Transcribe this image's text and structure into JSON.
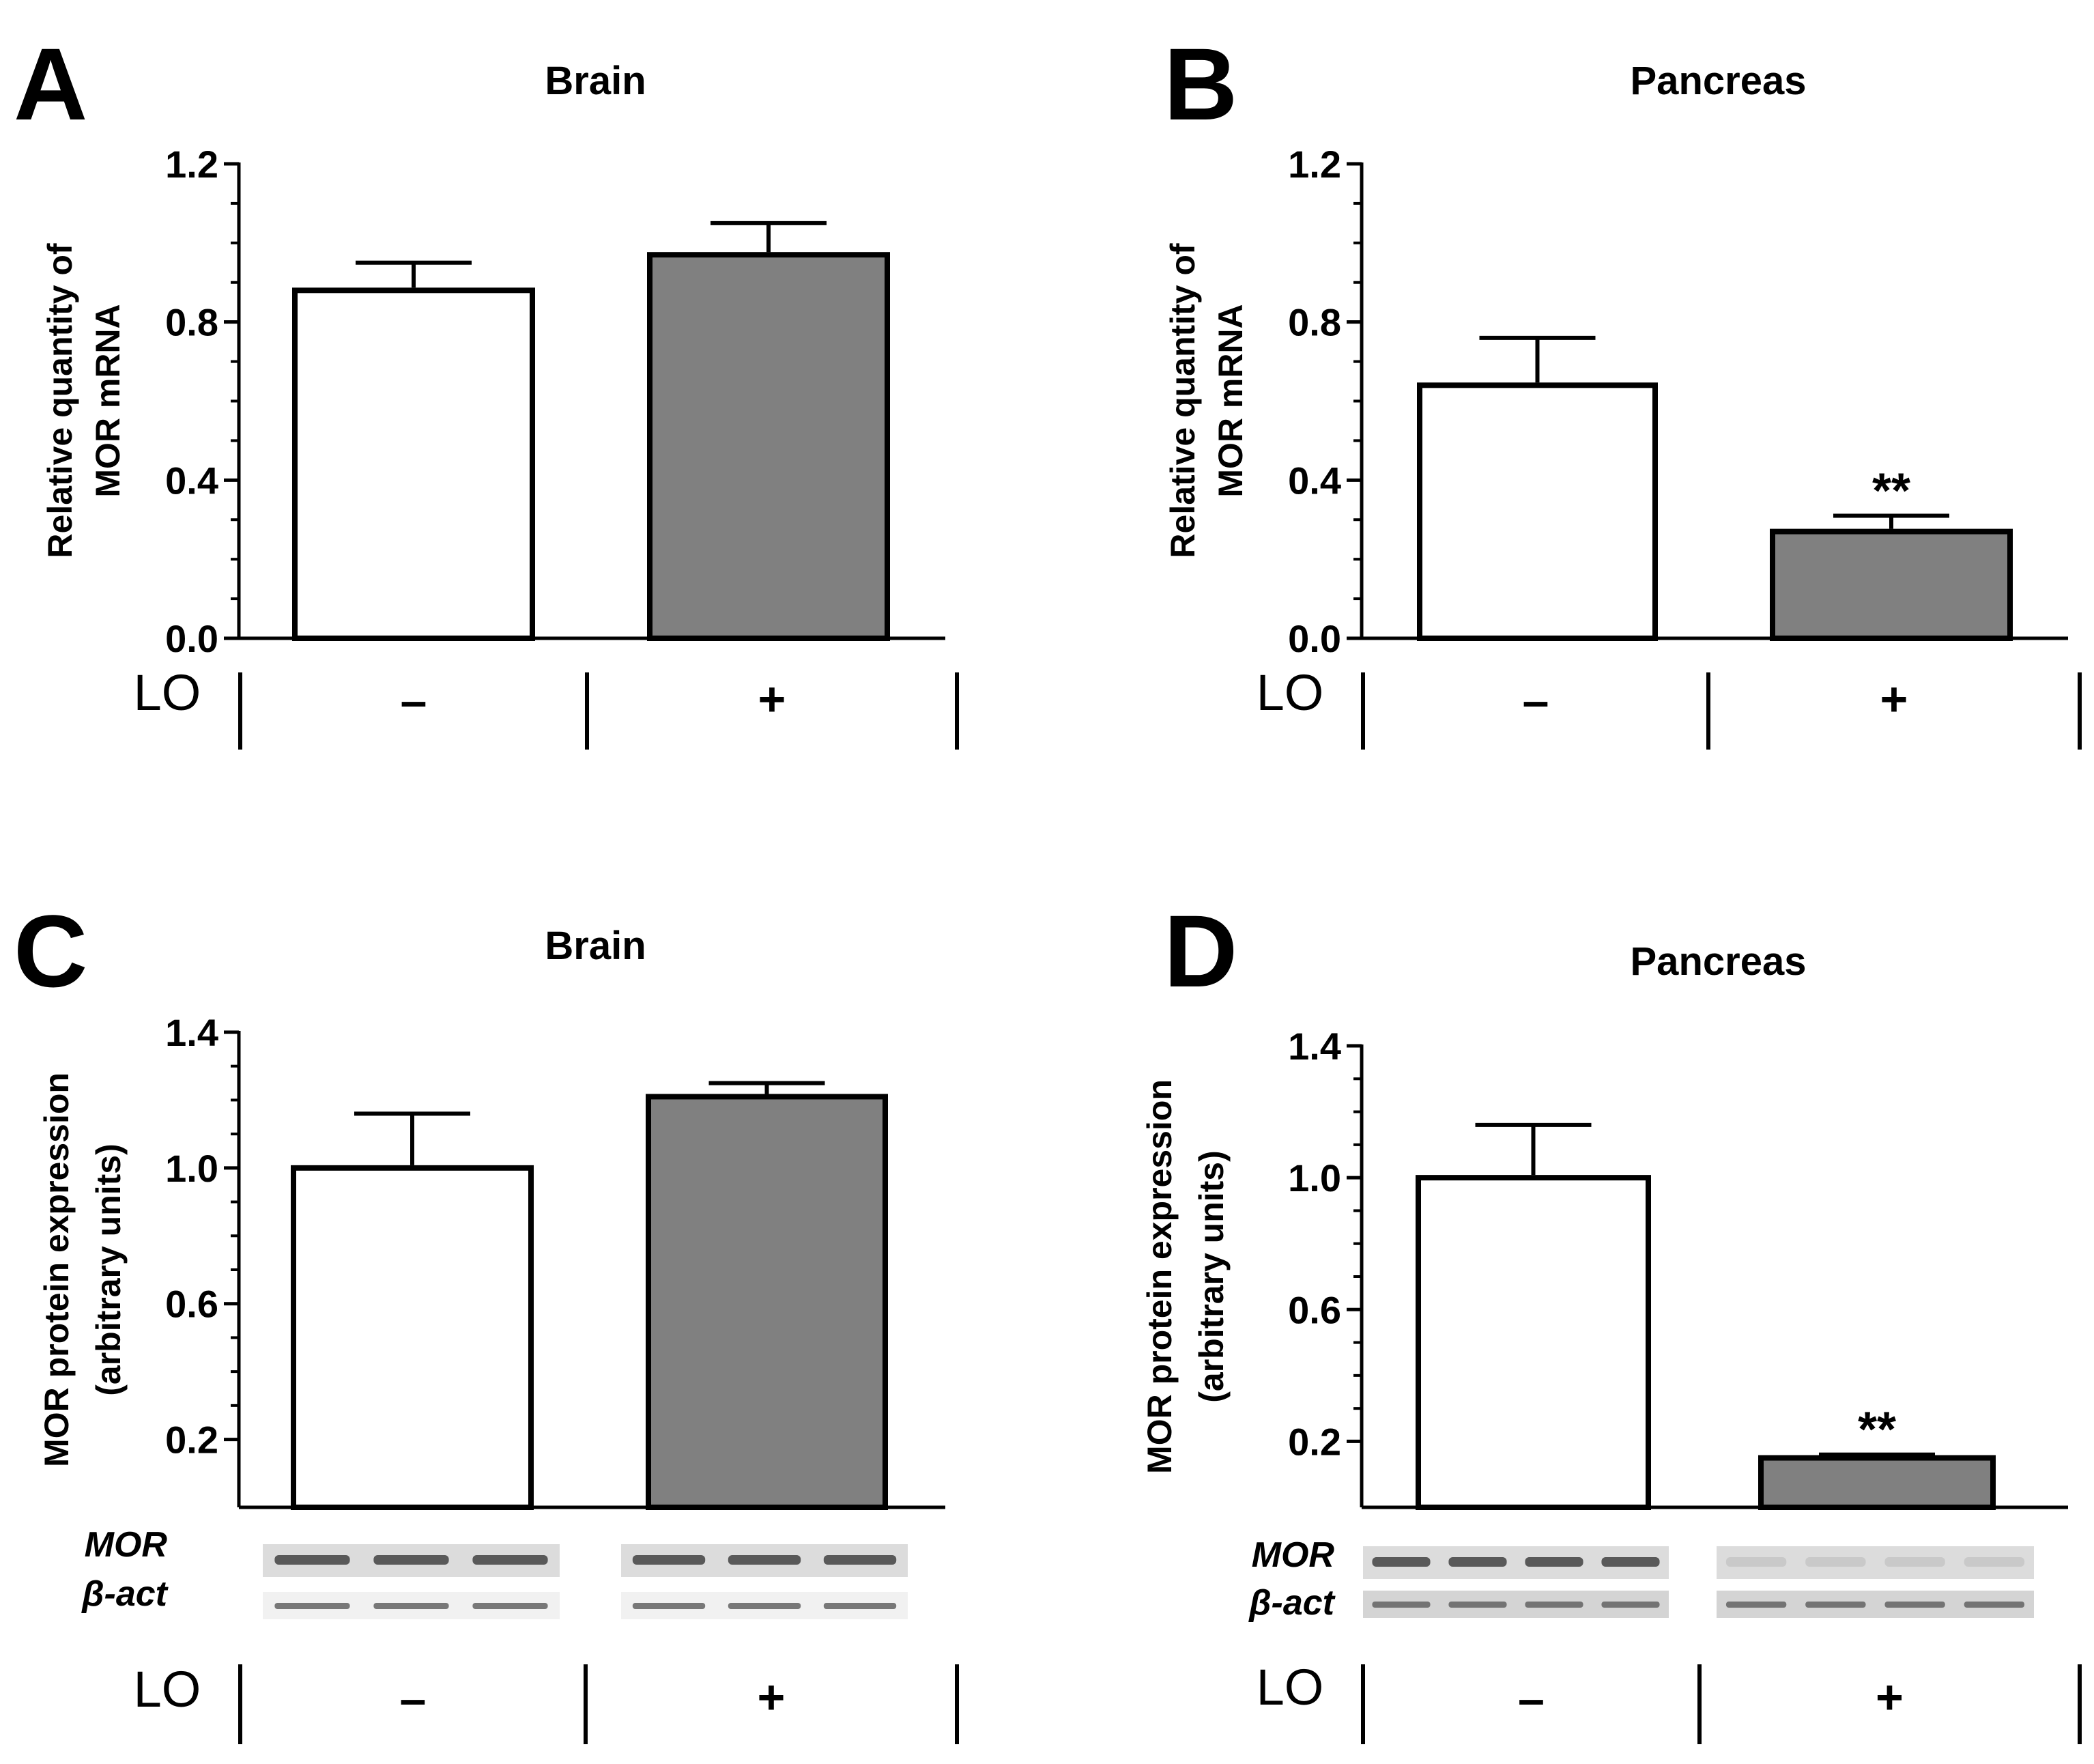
{
  "colors": {
    "control": "#ffffff",
    "treated": "#808080",
    "stroke": "#000000"
  },
  "chart_data": [
    {
      "panel": "A",
      "type": "bar",
      "title": "Brain",
      "ylabel_lines": [
        "Relative quantity of",
        "MOR mRNA"
      ],
      "ylim": [
        0,
        1.2
      ],
      "yticks": [
        0.0,
        0.4,
        0.8,
        1.2
      ],
      "ytick_labels": [
        "0.0",
        "0.4",
        "0.8",
        "1.2"
      ],
      "categories": [
        "–",
        "+"
      ],
      "group_label": "LO",
      "values": [
        0.88,
        0.97
      ],
      "errors": [
        0.07,
        0.08
      ],
      "annotations": [
        "",
        ""
      ]
    },
    {
      "panel": "B",
      "type": "bar",
      "title": "Pancreas",
      "ylabel_lines": [
        "Relative quantity of",
        "MOR mRNA"
      ],
      "ylim": [
        0,
        1.2
      ],
      "yticks": [
        0.0,
        0.4,
        0.8,
        1.2
      ],
      "ytick_labels": [
        "0.0",
        "0.4",
        "0.8",
        "1.2"
      ],
      "categories": [
        "–",
        "+"
      ],
      "group_label": "LO",
      "values": [
        0.64,
        0.27
      ],
      "errors": [
        0.12,
        0.04
      ],
      "annotations": [
        "",
        "**"
      ]
    },
    {
      "panel": "C",
      "type": "bar",
      "title": "Brain",
      "ylabel_lines": [
        "MOR protein expression",
        "(arbitrary units)"
      ],
      "ylim": [
        0,
        1.4
      ],
      "yticks": [
        0.2,
        0.6,
        1.0,
        1.4
      ],
      "ytick_labels": [
        "0.2",
        "0.6",
        "1.0",
        "1.4"
      ],
      "categories": [
        "–",
        "+"
      ],
      "group_label": "LO",
      "values": [
        1.0,
        1.21
      ],
      "errors": [
        0.16,
        0.04
      ],
      "annotations": [
        "",
        ""
      ],
      "blot_labels": [
        "MOR",
        "β-act"
      ]
    },
    {
      "panel": "D",
      "type": "bar",
      "title": "Pancreas",
      "ylabel_lines": [
        "MOR protein expression",
        "(arbitrary units)"
      ],
      "ylim": [
        0,
        1.4
      ],
      "yticks": [
        0.2,
        0.6,
        1.0,
        1.4
      ],
      "ytick_labels": [
        "0.2",
        "0.6",
        "1.0",
        "1.4"
      ],
      "categories": [
        "–",
        "+"
      ],
      "group_label": "LO",
      "values": [
        1.0,
        0.15
      ],
      "errors": [
        0.16,
        0.01
      ],
      "annotations": [
        "",
        "**"
      ],
      "blot_labels": [
        "MOR",
        "β-act"
      ]
    }
  ]
}
